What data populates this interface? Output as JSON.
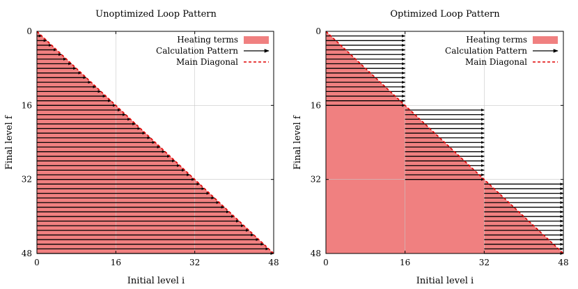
{
  "chart_data": [
    {
      "type": "line",
      "title": "Unoptimized Loop Pattern",
      "xlabel": "Initial level i",
      "ylabel": "Final level f",
      "xlim": [
        0,
        48
      ],
      "ylim": [
        0,
        48
      ],
      "y_inverted": true,
      "xticks": [
        0,
        16,
        32,
        48
      ],
      "yticks": [
        0,
        16,
        32,
        48
      ],
      "grid": true,
      "legend_position": "top-right",
      "legend": [
        "Heating terms",
        "Calculation Pattern",
        "Main Diagonal"
      ],
      "colors": {
        "heating": "#f08080",
        "arrow": "#000000",
        "diagonal": "#e00000"
      },
      "heating_region": "lower-left triangle (f >= i)",
      "arrows": {
        "rows_from": 1,
        "rows_to": 48,
        "x_start": 0,
        "x_end": "row index f"
      },
      "diagonal": [
        [
          0,
          0
        ],
        [
          48,
          48
        ]
      ]
    },
    {
      "type": "line",
      "title": "Optimized Loop Pattern",
      "xlabel": "Initial level i",
      "ylabel": "Final level f",
      "xlim": [
        0,
        48
      ],
      "ylim": [
        0,
        48
      ],
      "y_inverted": true,
      "xticks": [
        0,
        16,
        32,
        48
      ],
      "yticks": [
        0,
        16,
        32,
        48
      ],
      "grid": true,
      "legend_position": "top-right",
      "legend": [
        "Heating terms",
        "Calculation Pattern",
        "Main Diagonal"
      ],
      "colors": {
        "heating": "#f08080",
        "arrow": "#000000",
        "diagonal": "#e00000"
      },
      "heating_region": "lower-left triangle (f >= i)",
      "arrow_blocks": [
        {
          "rows_from": 1,
          "rows_to": 16,
          "x_start": 0,
          "x_end": 16
        },
        {
          "rows_from": 17,
          "rows_to": 32,
          "x_start": 16,
          "x_end": 32
        },
        {
          "rows_from": 33,
          "rows_to": 48,
          "x_start": 32,
          "x_end": 48
        }
      ],
      "diagonal": [
        [
          0,
          0
        ],
        [
          48,
          48
        ]
      ]
    }
  ]
}
